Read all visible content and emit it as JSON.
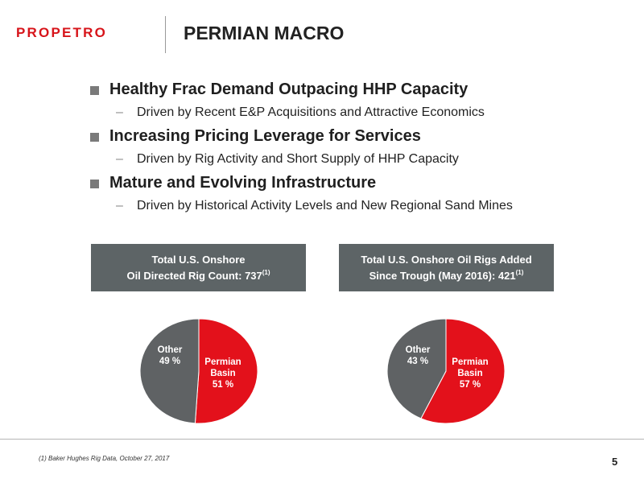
{
  "header": {
    "logo_text": "PROPETRO",
    "title": "PERMIAN MACRO"
  },
  "bullets": [
    {
      "heading": "Healthy Frac Demand Outpacing HHP Capacity",
      "sub": "Driven by Recent E&P Acquisitions and Attractive Economics"
    },
    {
      "heading": "Increasing Pricing Leverage for Services",
      "sub": "Driven by Rig Activity and Short Supply of HHP Capacity"
    },
    {
      "heading": "Mature and Evolving Infrastructure",
      "sub": "Driven by Historical Activity Levels and New Regional Sand Mines"
    }
  ],
  "panels": [
    {
      "title_line1": "Total U.S. Onshore",
      "title_line2": "Oil Directed Rig Count: 737",
      "footnote_ref": "(1)"
    },
    {
      "title_line1": "Total U.S. Onshore Oil Rigs Added",
      "title_line2": "Since Trough (May 2016): 421",
      "footnote_ref": "(1)"
    }
  ],
  "colors": {
    "permian": "#e3111b",
    "other": "#5f6264",
    "panel_bg": "#5d6466",
    "brand": "#d7141a"
  },
  "chart_data": [
    {
      "type": "pie",
      "categories": [
        "Permian Basin",
        "Other"
      ],
      "values": [
        51,
        49
      ],
      "labels": [
        {
          "line1": "Permian",
          "line2": "Basin",
          "line3": "51 %"
        },
        {
          "line1": "Other",
          "line2": "49 %"
        }
      ]
    },
    {
      "type": "pie",
      "categories": [
        "Permian Basin",
        "Other"
      ],
      "values": [
        57,
        43
      ],
      "labels": [
        {
          "line1": "Permian",
          "line2": "Basin",
          "line3": "57 %"
        },
        {
          "line1": "Other",
          "line2": "43 %"
        }
      ]
    }
  ],
  "footer": {
    "footnote": "(1) Baker Hughes Rig Data, October 27, 2017",
    "page_number": "5"
  }
}
